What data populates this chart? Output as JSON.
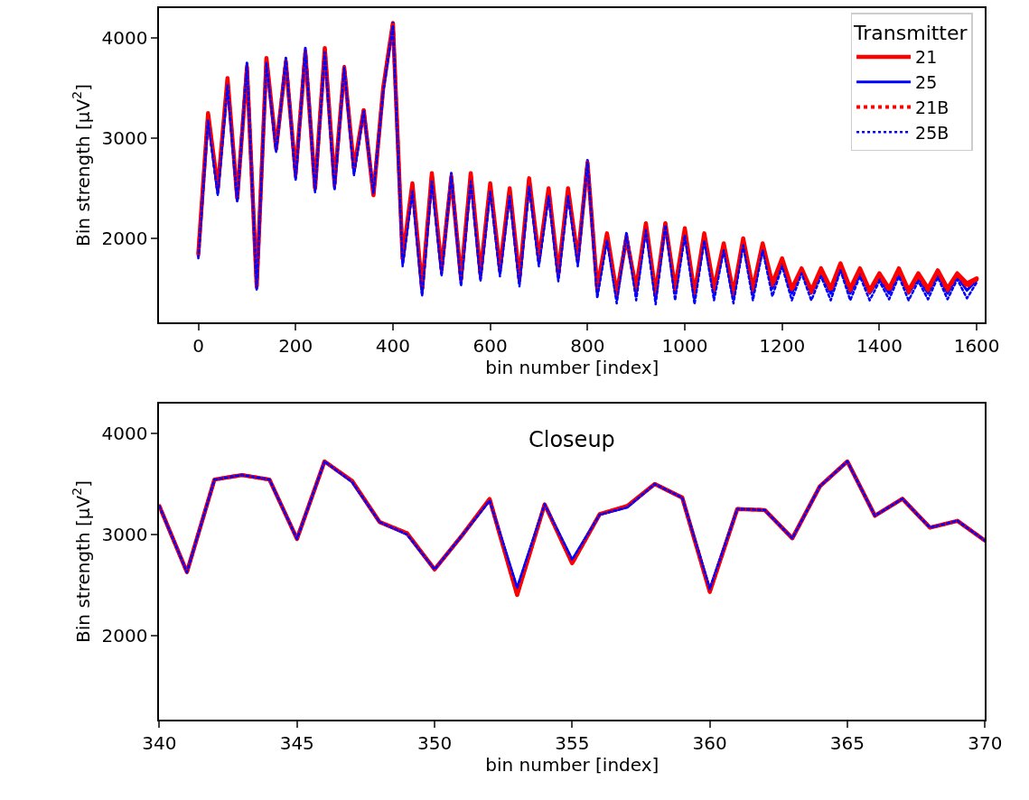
{
  "chart_data": [
    {
      "type": "line",
      "xlabel": "bin number [index]",
      "ylabel": "Bin strength [μV$^{2}$]",
      "legend_title": "Transmitter",
      "legend": "top right",
      "marker": "none",
      "xlim": [
        -80,
        1617
      ],
      "xticks": [
        0,
        200,
        400,
        600,
        800,
        1000,
        1200,
        1400,
        1600
      ],
      "ylim": [
        1160,
        4300
      ],
      "yticks": [
        2000,
        3000,
        4000
      ],
      "x": [
        0,
        20,
        40,
        60,
        80,
        100,
        120,
        140,
        160,
        180,
        200,
        220,
        240,
        260,
        280,
        300,
        320,
        340,
        360,
        380,
        400,
        420,
        440,
        460,
        480,
        500,
        520,
        540,
        560,
        580,
        600,
        620,
        640,
        660,
        680,
        700,
        720,
        740,
        760,
        780,
        800,
        820,
        840,
        860,
        880,
        900,
        920,
        940,
        960,
        980,
        1000,
        1020,
        1040,
        1060,
        1080,
        1100,
        1120,
        1140,
        1160,
        1180,
        1200,
        1220,
        1240,
        1260,
        1280,
        1300,
        1320,
        1340,
        1360,
        1380,
        1400,
        1420,
        1440,
        1460,
        1480,
        1500,
        1520,
        1540,
        1560,
        1580,
        1600
      ],
      "series": [
        {
          "name": "21",
          "color": "#ff0000",
          "line_style": "solid",
          "values": [
            1850,
            3250,
            2500,
            3600,
            2400,
            3700,
            1520,
            3800,
            2900,
            3750,
            2650,
            3850,
            2500,
            3900,
            2550,
            3700,
            2700,
            3280,
            2430,
            3500,
            4150,
            1800,
            2550,
            1500,
            2650,
            1700,
            2600,
            1600,
            2650,
            1650,
            2550,
            1700,
            2500,
            1600,
            2600,
            1800,
            2500,
            1650,
            2500,
            1800,
            2750,
            1500,
            2050,
            1450,
            2000,
            1500,
            2150,
            1450,
            2150,
            1500,
            2100,
            1450,
            2050,
            1500,
            1950,
            1450,
            2000,
            1500,
            1950,
            1550,
            1800,
            1500,
            1700,
            1480,
            1700,
            1500,
            1750,
            1500,
            1700,
            1480,
            1650,
            1500,
            1700,
            1480,
            1650,
            1500,
            1680,
            1500,
            1650,
            1550,
            1600
          ]
        },
        {
          "name": "25",
          "color": "#0000ff",
          "line_style": "solid",
          "values": [
            1820,
            3200,
            2450,
            3550,
            2380,
            3750,
            1500,
            3780,
            2880,
            3800,
            2600,
            3900,
            2480,
            3880,
            2500,
            3720,
            2650,
            3280,
            2460,
            3480,
            4150,
            1750,
            2500,
            1450,
            2600,
            1650,
            2650,
            1550,
            2600,
            1600,
            2500,
            1650,
            2450,
            1550,
            2550,
            1750,
            2450,
            1600,
            2450,
            1750,
            2780,
            1450,
            2000,
            1400,
            2050,
            1450,
            2100,
            1400,
            2150,
            1450,
            2050,
            1400,
            2000,
            1450,
            1900,
            1400,
            1950,
            1450,
            1900,
            1500,
            1750,
            1450,
            1680,
            1450,
            1650,
            1450,
            1700,
            1450,
            1650,
            1450,
            1600,
            1450,
            1650,
            1450,
            1600,
            1450,
            1640,
            1450,
            1620,
            1480,
            1580
          ]
        },
        {
          "name": "21B",
          "color": "#ff0000",
          "line_style": "dotted",
          "values": [
            1830,
            3230,
            2480,
            3580,
            2390,
            3720,
            1510,
            3790,
            2890,
            3770,
            2630,
            3870,
            2490,
            3890,
            2530,
            3710,
            2680,
            3280,
            2440,
            3490,
            4150,
            1780,
            2530,
            1480,
            2630,
            1680,
            2620,
            1580,
            2630,
            1630,
            2530,
            1680,
            2480,
            1580,
            2580,
            1780,
            2480,
            1630,
            2480,
            1780,
            2760,
            1480,
            2030,
            1430,
            2020,
            1480,
            2130,
            1430,
            2150,
            1480,
            2080,
            1430,
            2030,
            1480,
            1930,
            1430,
            1980,
            1480,
            1930,
            1530,
            1780,
            1480,
            1690,
            1460,
            1680,
            1480,
            1730,
            1480,
            1680,
            1460,
            1630,
            1480,
            1680,
            1460,
            1630,
            1480,
            1660,
            1480,
            1640,
            1520,
            1590
          ]
        },
        {
          "name": "25B",
          "color": "#0000ff",
          "line_style": "dotted",
          "values": [
            1800,
            3180,
            2430,
            3530,
            2360,
            3730,
            1480,
            3760,
            2860,
            3780,
            2580,
            3880,
            2460,
            3860,
            2480,
            3700,
            2630,
            3270,
            2450,
            3460,
            4130,
            1720,
            2470,
            1420,
            2570,
            1620,
            2620,
            1520,
            2570,
            1570,
            2470,
            1620,
            2420,
            1520,
            2520,
            1720,
            2420,
            1570,
            2420,
            1720,
            2760,
            1400,
            1980,
            1350,
            2030,
            1380,
            2080,
            1340,
            2130,
            1380,
            2030,
            1340,
            1980,
            1380,
            1880,
            1350,
            1930,
            1380,
            1880,
            1420,
            1720,
            1380,
            1650,
            1380,
            1620,
            1380,
            1680,
            1380,
            1620,
            1380,
            1570,
            1390,
            1620,
            1380,
            1570,
            1390,
            1610,
            1390,
            1590,
            1400,
            1560
          ]
        }
      ]
    },
    {
      "type": "line",
      "title": "Closeup",
      "xlabel": "bin number [index]",
      "ylabel": "Bin strength [μV$^{2}$]",
      "legend": false,
      "marker": "none",
      "xlim": [
        340,
        370
      ],
      "xticks": [
        340,
        345,
        350,
        355,
        360,
        365,
        370
      ],
      "ylim": [
        1160,
        4300
      ],
      "yticks": [
        2000,
        3000,
        4000
      ],
      "x": [
        340,
        341,
        342,
        343,
        344,
        345,
        346,
        347,
        348,
        349,
        350,
        351,
        352,
        353,
        354,
        355,
        356,
        357,
        358,
        359,
        360,
        361,
        362,
        363,
        364,
        365,
        366,
        367,
        368,
        369,
        370
      ],
      "series": [
        {
          "color": "#ff0000",
          "line_style": "solid",
          "values": [
            3280,
            2625,
            3543,
            3588,
            3543,
            2955,
            3723,
            3530,
            3123,
            3010,
            2653,
            2990,
            3350,
            2400,
            3297,
            2714,
            3200,
            3280,
            3499,
            3364,
            2430,
            3252,
            3241,
            2961,
            3476,
            3723,
            3185,
            3353,
            3067,
            3134,
            2938
          ]
        },
        {
          "color": "#0000ff",
          "line_style": "solid",
          "values": [
            3280,
            2625,
            3543,
            3588,
            3543,
            2955,
            3723,
            3521,
            3123,
            3000,
            2653,
            2990,
            3336,
            2468,
            3297,
            2748,
            3196,
            3269,
            3499,
            3364,
            2457,
            3252,
            3241,
            2961,
            3476,
            3723,
            3185,
            3353,
            3067,
            3134,
            2938
          ]
        },
        {
          "color": "#ff0000",
          "line_style": "dotted",
          "values": [
            3280,
            2625,
            3543,
            3588,
            3543,
            2955,
            3723,
            3530,
            3123,
            3010,
            2653,
            2990,
            3350,
            2400,
            3297,
            2714,
            3200,
            3280,
            3499,
            3364,
            2430,
            3252,
            3241,
            2961,
            3476,
            3723,
            3185,
            3353,
            3067,
            3134,
            2938
          ]
        },
        {
          "color": "#0000ff",
          "line_style": "dotted",
          "values": [
            3280,
            2625,
            3543,
            3588,
            3543,
            2955,
            3723,
            3521,
            3123,
            3000,
            2653,
            2990,
            3336,
            2468,
            3297,
            2748,
            3196,
            3269,
            3499,
            3364,
            2457,
            3252,
            3241,
            2961,
            3476,
            3723,
            3185,
            3353,
            3067,
            3134,
            2938
          ]
        }
      ]
    }
  ]
}
